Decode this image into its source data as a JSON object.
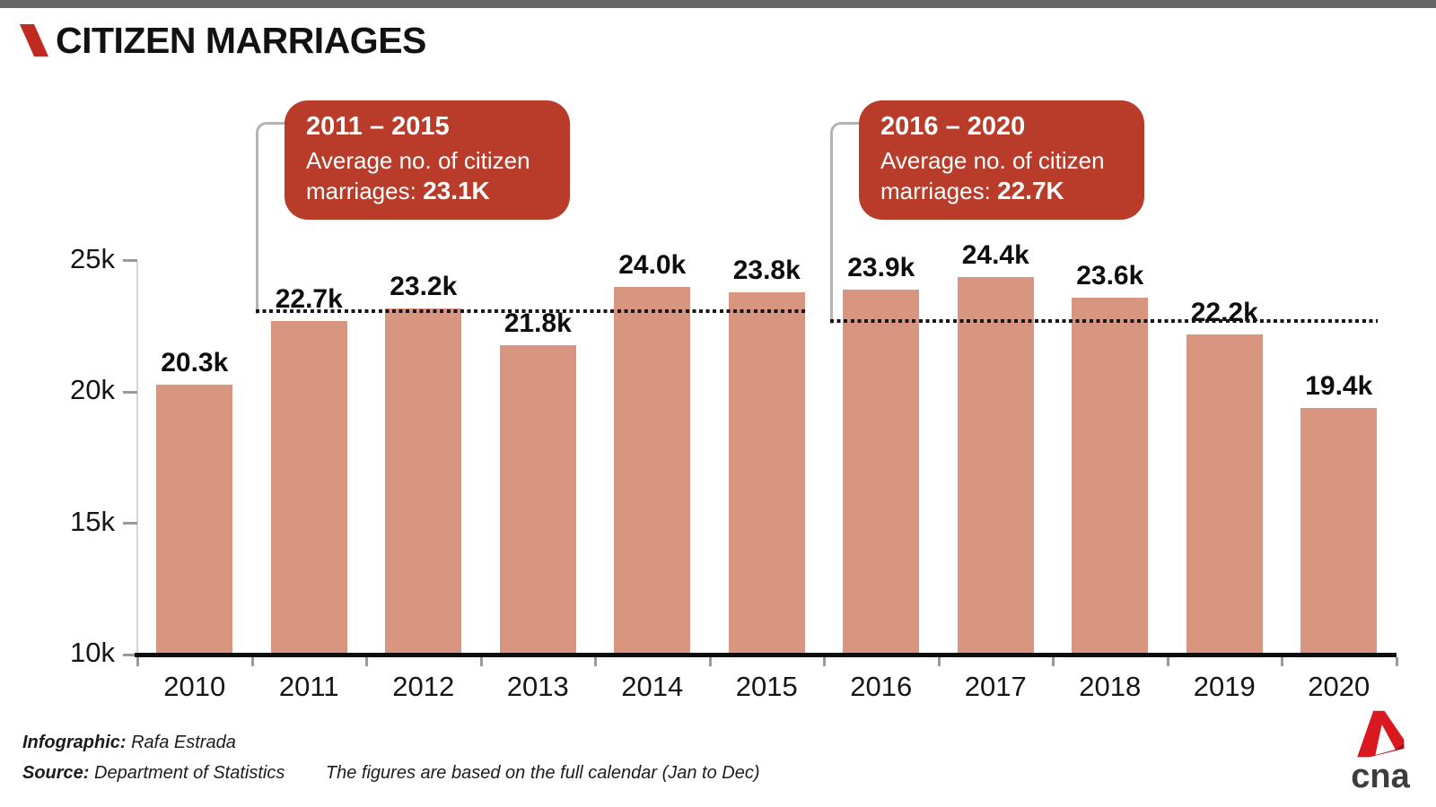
{
  "header": {
    "title": "CITIZEN MARRIAGES"
  },
  "callouts": [
    {
      "period": "2011 – 2015",
      "desc_line1": "Average no. of citizen",
      "desc_line2": "marriages:",
      "value": "23.1K"
    },
    {
      "period": "2016 – 2020",
      "desc_line1": "Average no. of citizen",
      "desc_line2": "marriages:",
      "value": "22.7K"
    }
  ],
  "chart_data": {
    "type": "bar",
    "title": "CITIZEN MARRIAGES",
    "categories": [
      "2010",
      "2011",
      "2012",
      "2013",
      "2014",
      "2015",
      "2016",
      "2017",
      "2018",
      "2019",
      "2020"
    ],
    "values": [
      20.3,
      22.7,
      23.2,
      21.8,
      24.0,
      23.8,
      23.9,
      24.4,
      23.6,
      22.2,
      19.4
    ],
    "value_labels": [
      "20.3k",
      "22.7k",
      "23.2k",
      "21.8k",
      "24.0k",
      "23.8k",
      "23.9k",
      "24.4k",
      "23.6k",
      "22.2k",
      "19.4k"
    ],
    "unit": "thousand citizen marriages",
    "ylim": [
      10,
      25
    ],
    "y_ticks": [
      {
        "label": "25k",
        "value": 25
      },
      {
        "label": "20k",
        "value": 20
      },
      {
        "label": "15k",
        "value": 15
      },
      {
        "label": "10k",
        "value": 10
      }
    ],
    "grid": false,
    "legend": "none",
    "bar_color": "#d89681",
    "averages": [
      {
        "period": "2011 – 2015",
        "value": 23.1,
        "label": "23.1K",
        "span_start": "2011",
        "span_end": "2015"
      },
      {
        "period": "2016 – 2020",
        "value": 22.7,
        "label": "22.7K",
        "span_start": "2016",
        "span_end": "2020"
      }
    ]
  },
  "footer": {
    "infographic_label": "Infographic:",
    "infographic_value": "Rafa Estrada",
    "source_label": "Source:",
    "source_value": "Department of Statistics",
    "note": "The figures are based on the full calendar (Jan to Dec)"
  },
  "logo": {
    "text": "cna"
  },
  "colors": {
    "accent_red": "#b83c29",
    "bar_salmon": "#d89681",
    "brand_red": "#bf2a21",
    "topbar_gray": "#666666"
  }
}
